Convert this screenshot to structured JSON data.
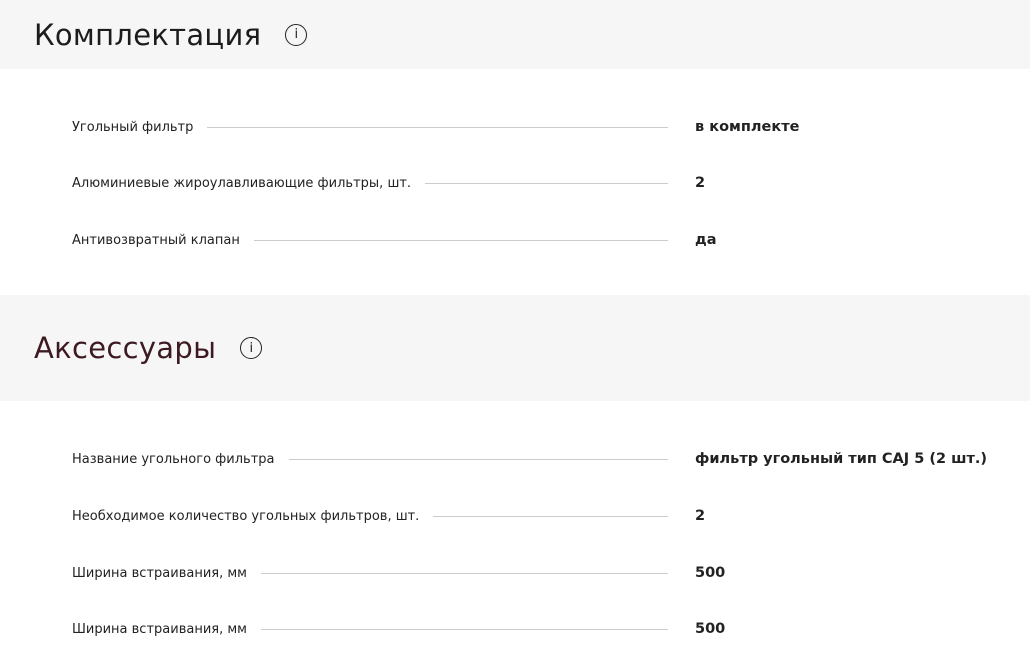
{
  "sections": [
    {
      "title": "Комплектация",
      "title_color": "#1c1c1c",
      "rows": [
        {
          "label": "Угольный фильтр",
          "value": "в комплекте"
        },
        {
          "label": "Алюминиевые жироулавливающие фильтры, шт.",
          "value": "2"
        },
        {
          "label": "Антивозвратный клапан",
          "value": "да"
        }
      ]
    },
    {
      "title": "Аксессуары",
      "title_color": "#3d1a22",
      "rows": [
        {
          "label": "Название угольного фильтра",
          "value": "фильтр угольный тип CAJ 5 (2 шт.)"
        },
        {
          "label": "Необходимое количество угольных фильтров, шт.",
          "value": "2"
        },
        {
          "label": "Ширина встраивания, мм",
          "value": "500"
        },
        {
          "label": "Ширина встраивания, мм",
          "value": "500"
        }
      ]
    }
  ],
  "info_icon": "i"
}
